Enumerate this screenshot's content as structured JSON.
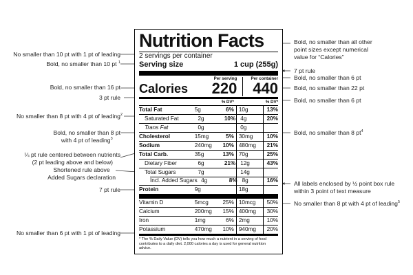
{
  "label": {
    "title": "Nutrition Facts",
    "servings": "2 servings per container",
    "serving_size_label": "Serving size",
    "serving_size_value": "1 cup (255g)",
    "per_serving": "Per serving",
    "per_container": "Per container",
    "calories_label": "Calories",
    "calories_serving": "220",
    "calories_container": "440",
    "dv_header": "% DV*",
    "rows_a": [
      {
        "name": "Total Fat",
        "ps": "5g",
        "psdv": "6%",
        "pc": "10g",
        "pcdv": "13%"
      },
      {
        "name": "Saturated Fat",
        "ps": "2g",
        "psdv": "10%",
        "pc": "4g",
        "pcdv": "20%"
      },
      {
        "name": "Trans Fat",
        "ps": "0g",
        "psdv": "",
        "pc": "0g",
        "pcdv": ""
      },
      {
        "name": "Cholesterol",
        "ps": "15mg",
        "psdv": "5%",
        "pc": "30mg",
        "pcdv": "10%"
      },
      {
        "name": "Sodium",
        "ps": "240mg",
        "psdv": "10%",
        "pc": "480mg",
        "pcdv": "21%"
      },
      {
        "name": "Total Carb.",
        "ps": "35g",
        "psdv": "13%",
        "pc": "70g",
        "pcdv": "25%"
      },
      {
        "name": "Dietary Fiber",
        "ps": "6g",
        "psdv": "21%",
        "pc": "12g",
        "pcdv": "43%"
      },
      {
        "name": "Total Sugars",
        "ps": "7g",
        "psdv": "",
        "pc": "14g",
        "pcdv": ""
      },
      {
        "name": "Incl. Added Sugars",
        "ps": "4g",
        "psdv": "8%",
        "pc": "8g",
        "pcdv": "16%"
      },
      {
        "name": "Protein",
        "ps": "9g",
        "psdv": "",
        "pc": "18g",
        "pcdv": ""
      }
    ],
    "rows_b": [
      {
        "name": "Vitamin D",
        "ps": "5mcg",
        "psdv": "25%",
        "pc": "10mcg",
        "pcdv": "50%"
      },
      {
        "name": "Calcium",
        "ps": "200mg",
        "psdv": "15%",
        "pc": "400mg",
        "pcdv": "30%"
      },
      {
        "name": "Iron",
        "ps": "1mg",
        "psdv": "6%",
        "pc": "2mg",
        "pcdv": "10%"
      },
      {
        "name": "Potassium",
        "ps": "470mg",
        "psdv": "10%",
        "pc": "940mg",
        "pcdv": "20%"
      }
    ],
    "footnote": "* The % Daily Value (DV) tells you how much a nutrient in a serving of food contributes to a daily diet. 2,000 calories a day is used for general nutrition advice."
  },
  "annotations_left": {
    "leading_10": "No smaller than 10 pt with 1 pt of leading",
    "bold_10": "Bold, no smaller than 10 pt",
    "bold_10_sup": "1",
    "bold_16": "Bold, no smaller than 16 pt",
    "rule_3": "3 pt rule",
    "leading_8": "No smaller than 8 pt with 4 pt of leading",
    "leading_8_sup": "2",
    "bold_8_line1": "Bold, no smaller than 8 pt",
    "bold_8_line2": "with 4 pt of leading",
    "bold_8_sup": "3",
    "quarter_rule_line1": "¼ pt rule centered between nutrients",
    "quarter_rule_line2": "(2 pt leading above and below)",
    "shortened_line1": "Shortened rule above",
    "shortened_line2": "Added Sugars declaration",
    "rule_7": "7 pt rule",
    "leading_6": "No smaller than 6 pt with 1 pt of leading"
  },
  "annotations_right": {
    "bold_all_line1": "Bold, no smaller than all other",
    "bold_all_line2": "point sizes except numerical",
    "bold_all_line3": "value for “Calories”",
    "rule_7": "7 pt rule",
    "bold_6_a": "Bold, no smaller than 6 pt",
    "bold_22": "Bold, no smaller than 22 pt",
    "bold_6_b": "Bold, no smaller than 6 pt",
    "bold_8": "Bold, no smaller than 8 pt",
    "bold_8_sup": "4",
    "box_line1": "All labels enclosed by ½ point box rule",
    "box_line2": "within 3 point of text measure",
    "leading_8": "No smaller than 8 pt with 4 pt of leading",
    "leading_8_sup": "5"
  }
}
